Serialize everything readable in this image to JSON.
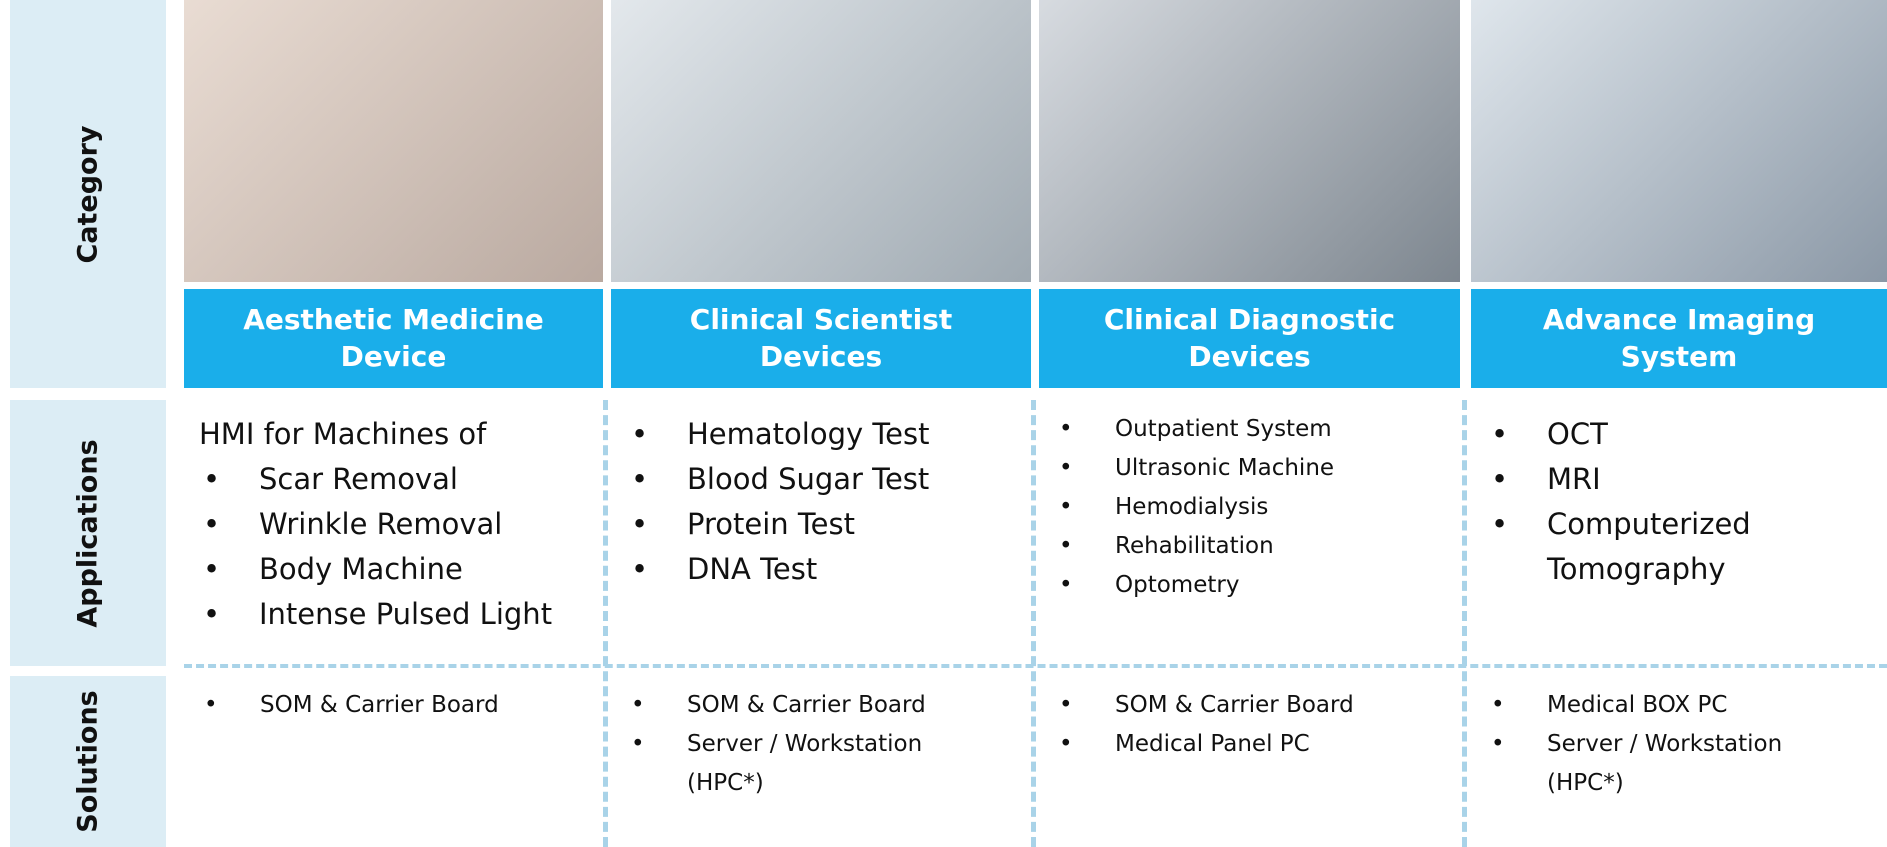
{
  "row_labels": [
    "Category",
    "Applications",
    "Solutions"
  ],
  "columns": [
    {
      "title_lines": [
        "Aesthetic Medicine",
        "Device"
      ],
      "applications_intro": "HMI for Machines of",
      "applications": [
        "Scar Removal",
        "Wrinkle Removal",
        "Body Machine",
        "Intense Pulsed Light"
      ],
      "solutions": [
        "SOM & Carrier Board"
      ]
    },
    {
      "title_lines": [
        "Clinical Scientist",
        "Devices"
      ],
      "applications": [
        "Hematology Test",
        "Blood Sugar Test",
        "Protein Test",
        "DNA Test"
      ],
      "solutions": [
        "SOM & Carrier Board",
        "Server / Workstation (HPC*)"
      ]
    },
    {
      "title_lines": [
        "Clinical Diagnostic",
        "Devices"
      ],
      "applications": [
        "Outpatient System",
        "Ultrasonic Machine",
        "Hemodialysis",
        "Rehabilitation",
        "Optometry"
      ],
      "solutions": [
        "SOM & Carrier Board",
        "Medical Panel PC"
      ]
    },
    {
      "title_lines": [
        "Advance Imaging",
        "System"
      ],
      "applications": [
        "OCT",
        "MRI",
        "Computerized Tomography"
      ],
      "solutions": [
        "Medical BOX PC",
        "Server / Workstation (HPC*)"
      ]
    }
  ]
}
